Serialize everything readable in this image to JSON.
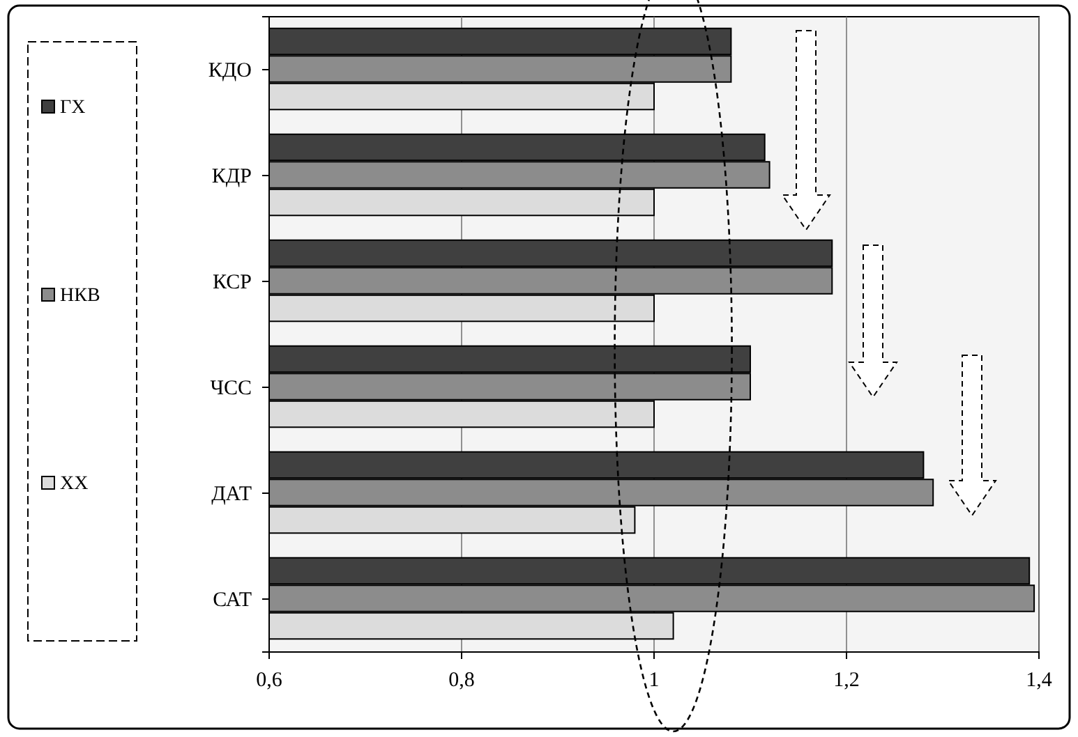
{
  "chart_data": {
    "type": "bar",
    "orientation": "horizontal",
    "categories": [
      "КДО",
      "КДР",
      "КСР",
      "ЧСС",
      "ДАТ",
      "САТ"
    ],
    "series": [
      {
        "name": "ГХ",
        "color": "#404040",
        "values": [
          1.08,
          1.115,
          1.185,
          1.1,
          1.28,
          1.39
        ]
      },
      {
        "name": "НКВ",
        "color": "#8c8c8c",
        "values": [
          1.08,
          1.12,
          1.185,
          1.1,
          1.29,
          1.395
        ]
      },
      {
        "name": "ХХ",
        "color": "#dcdcdc",
        "values": [
          1.0,
          1.0,
          1.0,
          1.0,
          0.98,
          1.02
        ]
      }
    ],
    "xlim": [
      0.6,
      1.4
    ],
    "xticks": [
      {
        "value": 0.6,
        "label": "0,6"
      },
      {
        "value": 0.8,
        "label": "0,8"
      },
      {
        "value": 1,
        "label": "1"
      },
      {
        "value": 1.2,
        "label": "1,2"
      },
      {
        "value": 1.4,
        "label": "1,4"
      }
    ],
    "grid": "x",
    "legend": "left"
  }
}
